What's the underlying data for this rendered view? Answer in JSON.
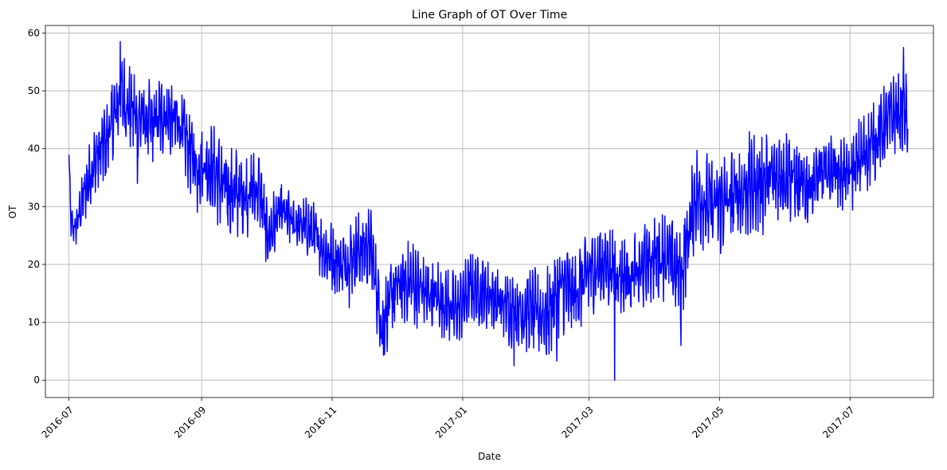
{
  "chart_data": {
    "type": "line",
    "title": "Line Graph of OT Over Time",
    "xlabel": "Date",
    "ylabel": "OT",
    "grid": true,
    "x_axis_type": "date",
    "xlim": [
      "2016-06-20",
      "2017-08-09"
    ],
    "ylim": [
      -3,
      61.3
    ],
    "x_ticks": [
      "2016-07-01",
      "2016-09-01",
      "2016-11-01",
      "2017-01-01",
      "2017-03-01",
      "2017-05-01",
      "2017-07-01"
    ],
    "x_tick_labels": [
      "2016-07",
      "2016-09",
      "2016-11",
      "2017-01",
      "2017-03",
      "2017-05",
      "2017-07"
    ],
    "y_ticks": [
      0,
      10,
      20,
      30,
      40,
      50,
      60
    ],
    "y_tick_labels": [
      "0",
      "10",
      "20",
      "30",
      "40",
      "50",
      "60"
    ],
    "series": [
      {
        "color": "#0000ff",
        "x_start": "2016-07-01",
        "x_end": "2017-07-28",
        "baseline": [
          [
            "2016-07-01",
            38.5
          ],
          [
            "2016-07-02",
            27
          ],
          [
            "2016-07-04",
            26
          ],
          [
            "2016-07-08",
            32
          ],
          [
            "2016-07-12",
            37
          ],
          [
            "2016-07-18",
            41
          ],
          [
            "2016-07-25",
            49
          ],
          [
            "2016-08-01",
            46
          ],
          [
            "2016-08-08",
            44
          ],
          [
            "2016-08-15",
            46
          ],
          [
            "2016-08-22",
            44
          ],
          [
            "2016-08-28",
            38
          ],
          [
            "2016-09-05",
            37
          ],
          [
            "2016-09-12",
            33
          ],
          [
            "2016-09-20",
            32
          ],
          [
            "2016-09-28",
            33
          ],
          [
            "2016-10-02",
            25
          ],
          [
            "2016-10-08",
            29
          ],
          [
            "2016-10-15",
            27
          ],
          [
            "2016-10-22",
            26
          ],
          [
            "2016-10-29",
            22
          ],
          [
            "2016-11-05",
            20
          ],
          [
            "2016-11-12",
            22
          ],
          [
            "2016-11-19",
            23
          ],
          [
            "2016-11-24",
            10
          ],
          [
            "2016-12-01",
            16
          ],
          [
            "2016-12-08",
            17
          ],
          [
            "2016-12-15",
            15
          ],
          [
            "2016-12-22",
            14
          ],
          [
            "2016-12-29",
            12
          ],
          [
            "2017-01-05",
            16
          ],
          [
            "2017-01-12",
            15
          ],
          [
            "2017-01-19",
            13
          ],
          [
            "2017-01-26",
            12
          ],
          [
            "2017-02-02",
            12
          ],
          [
            "2017-02-09",
            11
          ],
          [
            "2017-02-16",
            16
          ],
          [
            "2017-02-23",
            15
          ],
          [
            "2017-03-02",
            19
          ],
          [
            "2017-03-09",
            20
          ],
          [
            "2017-03-16",
            18
          ],
          [
            "2017-03-23",
            18
          ],
          [
            "2017-03-30",
            21
          ],
          [
            "2017-04-06",
            22
          ],
          [
            "2017-04-13",
            18
          ],
          [
            "2017-04-20",
            32
          ],
          [
            "2017-04-27",
            30
          ],
          [
            "2017-05-05",
            31
          ],
          [
            "2017-05-12",
            33
          ],
          [
            "2017-05-19",
            34
          ],
          [
            "2017-05-26",
            35
          ],
          [
            "2017-06-02",
            36
          ],
          [
            "2017-06-09",
            33
          ],
          [
            "2017-06-16",
            35
          ],
          [
            "2017-06-23",
            37
          ],
          [
            "2017-06-30",
            35
          ],
          [
            "2017-07-07",
            39
          ],
          [
            "2017-07-14",
            42
          ],
          [
            "2017-07-21",
            46
          ],
          [
            "2017-07-28",
            46
          ]
        ],
        "amplitude": [
          [
            "2016-07-01",
            2
          ],
          [
            "2016-07-10",
            5
          ],
          [
            "2016-07-25",
            7
          ],
          [
            "2016-08-15",
            6
          ],
          [
            "2016-09-15",
            7
          ],
          [
            "2016-10-15",
            4
          ],
          [
            "2016-11-15",
            6
          ],
          [
            "2016-12-15",
            6
          ],
          [
            "2017-01-15",
            5
          ],
          [
            "2017-02-15",
            7
          ],
          [
            "2017-03-15",
            6
          ],
          [
            "2017-04-15",
            7
          ],
          [
            "2017-05-15",
            8
          ],
          [
            "2017-06-15",
            6
          ],
          [
            "2017-07-15",
            6
          ],
          [
            "2017-07-28",
            6
          ]
        ],
        "spikes": [
          [
            "2016-07-25",
            58.5
          ],
          [
            "2016-08-02",
            34
          ],
          [
            "2016-08-30",
            29
          ],
          [
            "2016-10-01",
            20.5
          ],
          [
            "2016-11-09",
            12.5
          ],
          [
            "2016-11-25",
            4.3
          ],
          [
            "2017-01-25",
            2.5
          ],
          [
            "2017-02-14",
            3.3
          ],
          [
            "2017-03-13",
            0
          ],
          [
            "2017-04-13",
            6
          ],
          [
            "2017-07-26",
            57.5
          ]
        ],
        "min": 0,
        "max": 58.5
      }
    ]
  }
}
